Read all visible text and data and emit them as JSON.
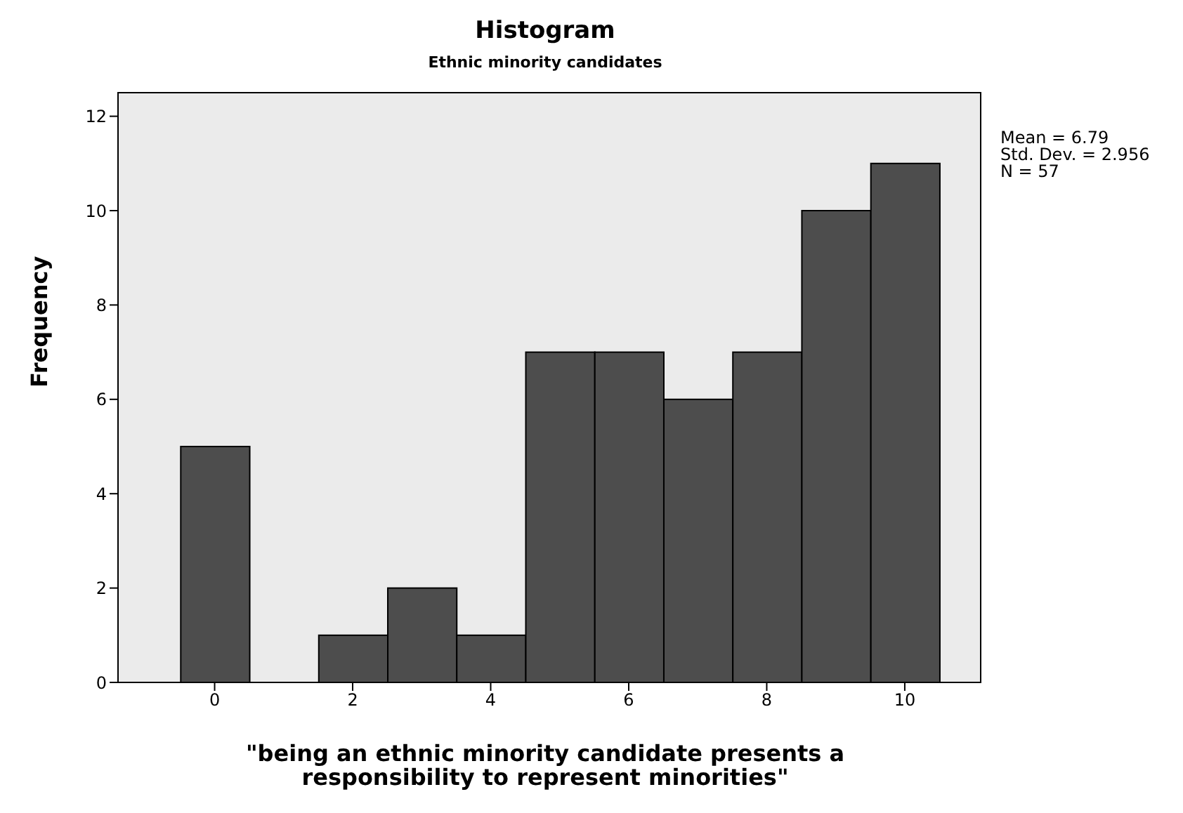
{
  "chart_data": {
    "type": "histogram",
    "title": "Histogram",
    "subtitle": "Ethnic minority candidates",
    "xlabel": "\"being an ethnic minority candidate presents a responsibility to represent minorities\"",
    "ylabel": "Frequency",
    "bins": [
      -0.5,
      0.5,
      1.5,
      2.5,
      3.5,
      4.5,
      5.5,
      6.5,
      7.5,
      8.5,
      9.5,
      10.5
    ],
    "values": [
      5,
      0,
      1,
      2,
      1,
      7,
      7,
      6,
      7,
      10,
      11
    ],
    "color": "#4d4d4d",
    "xlim": [
      -1.4,
      11.1
    ],
    "xticks": [
      0,
      2,
      4,
      6,
      8,
      10
    ],
    "ylim": [
      0,
      12.5
    ],
    "yticks": [
      0,
      2,
      4,
      6,
      8,
      10,
      12
    ],
    "annotations": [
      "Mean = 6.79",
      "Std. Dev. = 2.956",
      "N = 57"
    ]
  }
}
